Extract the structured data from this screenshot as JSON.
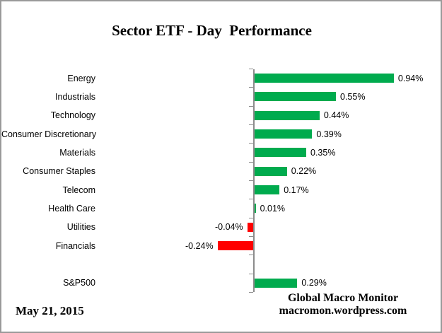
{
  "header": {
    "title": "Sector ETF - Day  Performance"
  },
  "footer": {
    "date": "May 21, 2015",
    "brand_line1": "Global Macro Monitor",
    "brand_line2": "macromon.wordpress.com"
  },
  "chart_data": {
    "type": "bar",
    "orientation": "horizontal",
    "title": "Sector ETF - Day  Performance",
    "categories": [
      "Energy",
      "Industrials",
      "Technology",
      "Consumer Discretionary",
      "Materials",
      "Consumer Staples",
      "Telecom",
      "Health Care",
      "Utilities",
      "Financials",
      "",
      "S&P500"
    ],
    "values": [
      0.94,
      0.55,
      0.44,
      0.39,
      0.35,
      0.22,
      0.17,
      0.01,
      -0.04,
      -0.24,
      null,
      0.29
    ],
    "data_labels": [
      "0.94%",
      "0.55%",
      "0.44%",
      "0.39%",
      "0.35%",
      "0.22%",
      "0.17%",
      "0.01%",
      "-0.04%",
      "-0.24%",
      "",
      "0.29%"
    ],
    "xlabel": "",
    "ylabel": "",
    "xlim": [
      -1.07,
      1.25
    ],
    "gridlines": false,
    "legend": false,
    "value_axis_labels_visible": false,
    "positive_color": "#00AB4E",
    "negative_color": "#FF0000",
    "axis_color": "#8c8c8c"
  }
}
